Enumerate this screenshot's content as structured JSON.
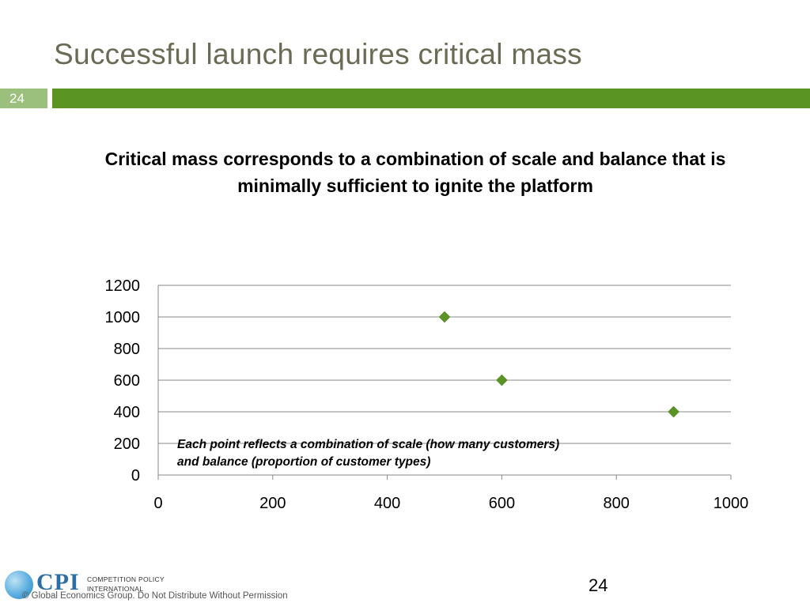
{
  "slide": {
    "title": "Successful launch requires critical mass",
    "number_badge": "24",
    "subtitle": "Critical mass corresponds to a combination of scale and balance that is minimally sufficient to ignite the platform",
    "page_number": "24"
  },
  "annotation": {
    "line1": "Each point reflects a combination of scale (how many customers)",
    "line2": "and balance (proportion of customer types)"
  },
  "footer": {
    "logo_mark": "CPI",
    "logo_line1": "COMPETITION POLICY",
    "logo_line2": "INTERNATIONAL",
    "copyright": "© Global Economics Group. Do Not Distribute Without Permission"
  },
  "colors": {
    "accent_green": "#5a9422",
    "badge_green": "#9bc07e",
    "title_gray": "#6b6b55",
    "marker_green": "#5a9422",
    "gridline": "#8a8a8a"
  },
  "chart_data": {
    "type": "scatter",
    "title": "",
    "xlabel": "",
    "ylabel": "",
    "xlim": [
      0,
      1000
    ],
    "ylim": [
      0,
      1200
    ],
    "x_ticks": [
      0,
      200,
      400,
      600,
      800,
      1000
    ],
    "y_ticks": [
      0,
      200,
      400,
      600,
      800,
      1000,
      1200
    ],
    "grid": "horizontal",
    "legend": "none",
    "marker": "diamond",
    "series": [
      {
        "x": [
          500,
          600,
          900
        ],
        "y": [
          1000,
          600,
          400
        ]
      }
    ]
  }
}
